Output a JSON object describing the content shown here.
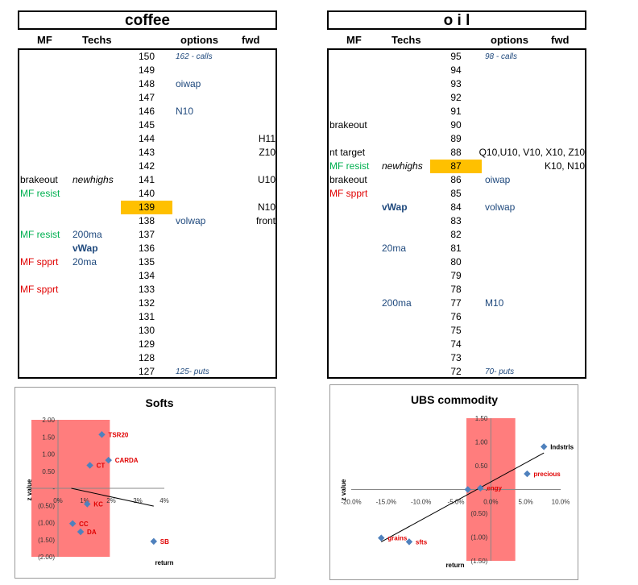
{
  "headers": {
    "mf": "MF",
    "techs": "Techs",
    "options": "options",
    "fwd": "fwd"
  },
  "coffee": {
    "title": "coffee",
    "rows": [
      {
        "price": "150",
        "options": "162 - calls",
        "opt_style": "small-it"
      },
      {
        "price": "149"
      },
      {
        "price": "148",
        "options": "oiwap"
      },
      {
        "price": "147"
      },
      {
        "price": "146",
        "options": "N10"
      },
      {
        "price": "145"
      },
      {
        "price": "144",
        "fwd": "H11"
      },
      {
        "price": "143",
        "fwd": "Z10"
      },
      {
        "price": "142"
      },
      {
        "price": "141",
        "mf": "brakeout",
        "mf_style": "black",
        "techs": "newhighs",
        "techs_style": "it",
        "fwd": "U10"
      },
      {
        "price": "140",
        "mf": "MF resist",
        "mf_style": "green"
      },
      {
        "price": "139",
        "highlight": true,
        "fwd": "N10"
      },
      {
        "price": "138",
        "options": "volwap",
        "fwd": "front"
      },
      {
        "price": "137",
        "mf": "MF resist",
        "mf_style": "green",
        "techs": "200ma"
      },
      {
        "price": "136",
        "techs": "vWap",
        "techs_style": "bold",
        "techs_indent": true
      },
      {
        "price": "135",
        "mf": "MF spprt",
        "mf_style": "red",
        "techs": "20ma"
      },
      {
        "price": "134"
      },
      {
        "price": "133",
        "mf": "MF spprt",
        "mf_style": "red"
      },
      {
        "price": "132"
      },
      {
        "price": "131"
      },
      {
        "price": "130"
      },
      {
        "price": "129"
      },
      {
        "price": "128"
      },
      {
        "price": "127",
        "options": "125- puts",
        "opt_style": "small-it"
      }
    ]
  },
  "oil": {
    "title": "o i l",
    "rows": [
      {
        "price": "95",
        "options": "98 - calls",
        "opt_style": "small-it"
      },
      {
        "price": "94"
      },
      {
        "price": "93"
      },
      {
        "price": "92"
      },
      {
        "price": "91"
      },
      {
        "price": "90",
        "mf": "brakeout",
        "mf_style": "black"
      },
      {
        "price": "89"
      },
      {
        "price": "88",
        "mf": "nt target",
        "mf_style": "black",
        "fwd": "Q10,U10, V10, X10, Z10"
      },
      {
        "price": "87",
        "highlight": true,
        "mf": "MF resist",
        "mf_style": "green",
        "techs": "newhighs",
        "techs_style": "it",
        "fwd": "K10, N10"
      },
      {
        "price": "86",
        "mf": "brakeout",
        "mf_style": "black",
        "options": "oiwap"
      },
      {
        "price": "85",
        "mf": "MF spprt",
        "mf_style": "red"
      },
      {
        "price": "84",
        "techs": "vWap",
        "techs_style": "bold",
        "options": "volwap"
      },
      {
        "price": "83"
      },
      {
        "price": "82"
      },
      {
        "price": "81",
        "techs": "20ma"
      },
      {
        "price": "80"
      },
      {
        "price": "79"
      },
      {
        "price": "78"
      },
      {
        "price": "77",
        "techs": "200ma",
        "options": "M10"
      },
      {
        "price": "76"
      },
      {
        "price": "75"
      },
      {
        "price": "74"
      },
      {
        "price": "73"
      },
      {
        "price": "72",
        "options": "70- puts",
        "opt_style": "small-it"
      }
    ]
  },
  "chart_data": [
    {
      "type": "scatter",
      "title": "Softs",
      "xlabel": "return",
      "ylabel": "z value",
      "xlim": [
        -0.01,
        0.04
      ],
      "ylim": [
        -2.0,
        2.0
      ],
      "x_ticks": [
        "0%",
        "1%",
        "2%",
        "3%",
        "4%"
      ],
      "y_ticks": [
        "2.00",
        "1.50",
        "1.00",
        "0.50",
        "-",
        "(0.50)",
        "(1.00)",
        "(1.50)",
        "(2.00)"
      ],
      "points": [
        {
          "label": "TSR20",
          "x": 0.0165,
          "y": 1.57
        },
        {
          "label": "CARDA",
          "x": 0.019,
          "y": 0.82
        },
        {
          "label": "CT",
          "x": 0.012,
          "y": 0.67
        },
        {
          "label": "KC",
          "x": 0.011,
          "y": -0.46
        },
        {
          "label": "CC",
          "x": 0.0055,
          "y": -1.03
        },
        {
          "label": "DA",
          "x": 0.0085,
          "y": -1.27
        },
        {
          "label": "SB",
          "x": 0.036,
          "y": -1.55
        }
      ],
      "trendline": {
        "x": [
          0.005,
          0.036
        ],
        "y": [
          0.0,
          -0.52
        ]
      },
      "shaded_region": {
        "x": [
          -0.01,
          0.0195
        ],
        "color": "#ff6666"
      },
      "colors": {
        "point": "#4f81bd",
        "label": "#e00000"
      }
    },
    {
      "type": "scatter",
      "title": "UBS commodity",
      "xlabel": "return",
      "ylabel": "z value",
      "xlim": [
        -0.2,
        0.1
      ],
      "ylim": [
        -1.5,
        1.5
      ],
      "x_ticks": [
        "-20.0%",
        "-15.0%",
        "-10.0%",
        "-5.0%",
        "0.0%",
        "5.0%",
        "10.0%"
      ],
      "y_ticks": [
        "1.50",
        "1.00",
        "0.50",
        "-",
        "(0.50)",
        "(1.00)",
        "(1.50)"
      ],
      "points": [
        {
          "label": "Indstrls",
          "x": 0.076,
          "y": 0.9
        },
        {
          "label": "precious",
          "x": 0.052,
          "y": 0.33
        },
        {
          "label": "engy",
          "x": -0.015,
          "y": 0.03
        },
        {
          "label": "",
          "x": -0.033,
          "y": 0.0
        },
        {
          "label": "grains",
          "x": -0.157,
          "y": -1.02
        },
        {
          "label": "sfts",
          "x": -0.117,
          "y": -1.1
        }
      ],
      "trendline": {
        "x": [
          -0.157,
          0.076
        ],
        "y": [
          -1.1,
          0.77
        ]
      },
      "shaded_region": {
        "x": [
          -0.035,
          0.035
        ],
        "color": "#ff6666"
      },
      "colors": {
        "point": "#4f81bd",
        "label": "#e00000",
        "label_dark": "#000000"
      }
    }
  ]
}
